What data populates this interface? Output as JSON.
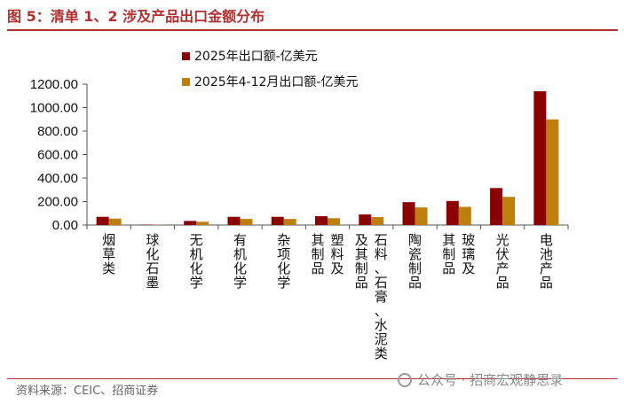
{
  "figure": {
    "title": "图 5：清单 1、2 涉及产品出口金额分布",
    "source": "资料来源：CEIC、招商证券",
    "watermark": "公众号 · 招商宏观静思录"
  },
  "colors": {
    "series1": "#8b0000",
    "series2": "#bf7f0f",
    "title": "#b0302f"
  },
  "chart_data": {
    "type": "bar",
    "title": "",
    "xlabel": "",
    "ylabel": "",
    "ylim": [
      0,
      1200
    ],
    "yticks": [
      "0.00",
      "200.00",
      "400.00",
      "600.00",
      "800.00",
      "1000.00",
      "1200.00"
    ],
    "legend_position": "top-left",
    "categories": [
      "烟草类",
      "球化石墨",
      "无机化学",
      "有机化学",
      "杂项化学",
      "塑料及其制品",
      "石料、石膏、水泥类及其制品",
      "陶瓷制品",
      "玻璃及其制品",
      "光伏产品",
      "电池产品"
    ],
    "category_label_lines": [
      [
        "烟草类"
      ],
      [
        "球化石墨"
      ],
      [
        "无机化学"
      ],
      [
        "有机化学"
      ],
      [
        "杂项化学"
      ],
      [
        "塑料及",
        "其制品"
      ],
      [
        "石料、石膏、水泥类",
        "及其制品"
      ],
      [
        "陶瓷制品"
      ],
      [
        "玻璃及",
        "其制品"
      ],
      [
        "光伏产品"
      ],
      [
        "电池产品"
      ]
    ],
    "series": [
      {
        "name": "2025年出口额-亿美元",
        "values": [
          70,
          3,
          35,
          70,
          70,
          75,
          90,
          195,
          205,
          315,
          1140
        ]
      },
      {
        "name": "2025年4-12月出口额-亿美元",
        "values": [
          55,
          2,
          28,
          52,
          52,
          58,
          68,
          150,
          155,
          240,
          900
        ]
      }
    ]
  }
}
